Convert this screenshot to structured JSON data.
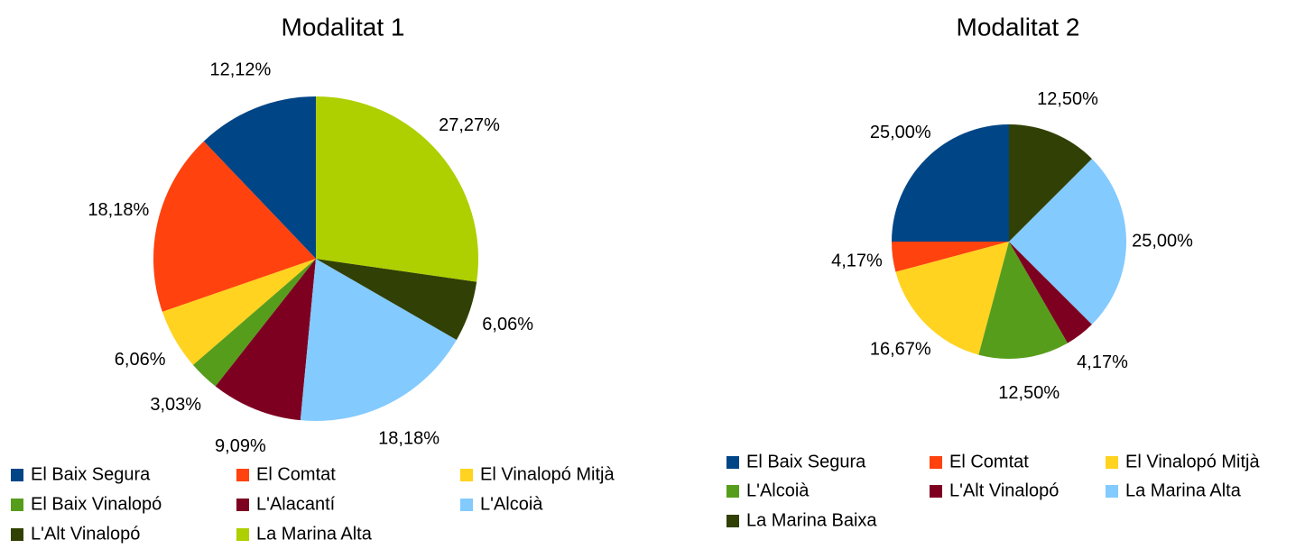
{
  "chart_data": [
    {
      "type": "pie",
      "title": "Modalitat 1",
      "categories": [
        "El Baix Segura",
        "El Comtat",
        "El Vinalopó Mitjà",
        "El Baix Vinalopó",
        "L'Alacantí",
        "L'Alcoià",
        "L'Alt Vinalopó",
        "La Marina Alta"
      ],
      "values": [
        12.12,
        18.18,
        6.06,
        3.03,
        9.09,
        18.18,
        6.06,
        27.27
      ],
      "value_labels": [
        "12,12%",
        "18,18%",
        "6,06%",
        "3,03%",
        "9,09%",
        "18,18%",
        "6,06%",
        "27,27%"
      ],
      "colors": [
        "#004586",
        "#ff420e",
        "#ffd320",
        "#579d1c",
        "#7e0021",
        "#83caff",
        "#314004",
        "#aecf00"
      ]
    },
    {
      "type": "pie",
      "title": "Modalitat 2",
      "categories": [
        "El Baix Segura",
        "El Comtat",
        "El Vinalopó Mitjà",
        "L'Alcoià",
        "L'Alt Vinalopó",
        "La Marina Alta",
        "La Marina Baixa"
      ],
      "values": [
        25.0,
        4.17,
        16.67,
        12.5,
        4.17,
        25.0,
        12.5
      ],
      "value_labels": [
        "25,00%",
        "4,17%",
        "16,67%",
        "12,50%",
        "4,17%",
        "25,00%",
        "12,50%"
      ],
      "colors": [
        "#004586",
        "#ff420e",
        "#ffd320",
        "#579d1c",
        "#7e0021",
        "#83caff",
        "#314004"
      ]
    }
  ]
}
